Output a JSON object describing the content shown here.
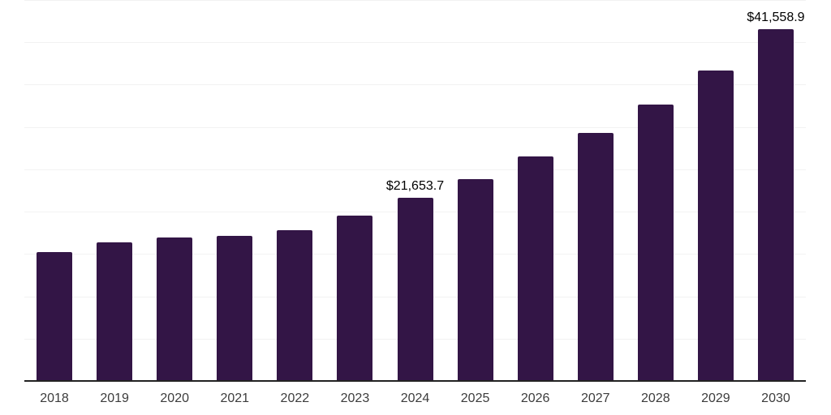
{
  "chart": {
    "background": "#ffffff",
    "bar_color": "#331546",
    "axis_color": "#222222",
    "gridline_color": "#f2f2f2",
    "value_label_color": "#000000",
    "tick_label_color": "#3c3c3c"
  },
  "chart_data": {
    "type": "bar",
    "title": "",
    "xlabel": "",
    "ylabel": "",
    "categories": [
      "2018",
      "2019",
      "2020",
      "2021",
      "2022",
      "2023",
      "2024",
      "2025",
      "2026",
      "2027",
      "2028",
      "2029",
      "2030"
    ],
    "values": [
      15200,
      16420,
      16990,
      17110,
      17820,
      19580,
      21653.7,
      23820,
      26510,
      29290,
      32620,
      36670,
      41558.9
    ],
    "data_labels": {
      "2024": "$21,653.7",
      "2030": "$41,558.9"
    },
    "ylim": [
      0,
      45000
    ],
    "gridline_step": 5000,
    "grid": "horizontal",
    "y_axis_labels_visible": false,
    "legend": "none"
  }
}
